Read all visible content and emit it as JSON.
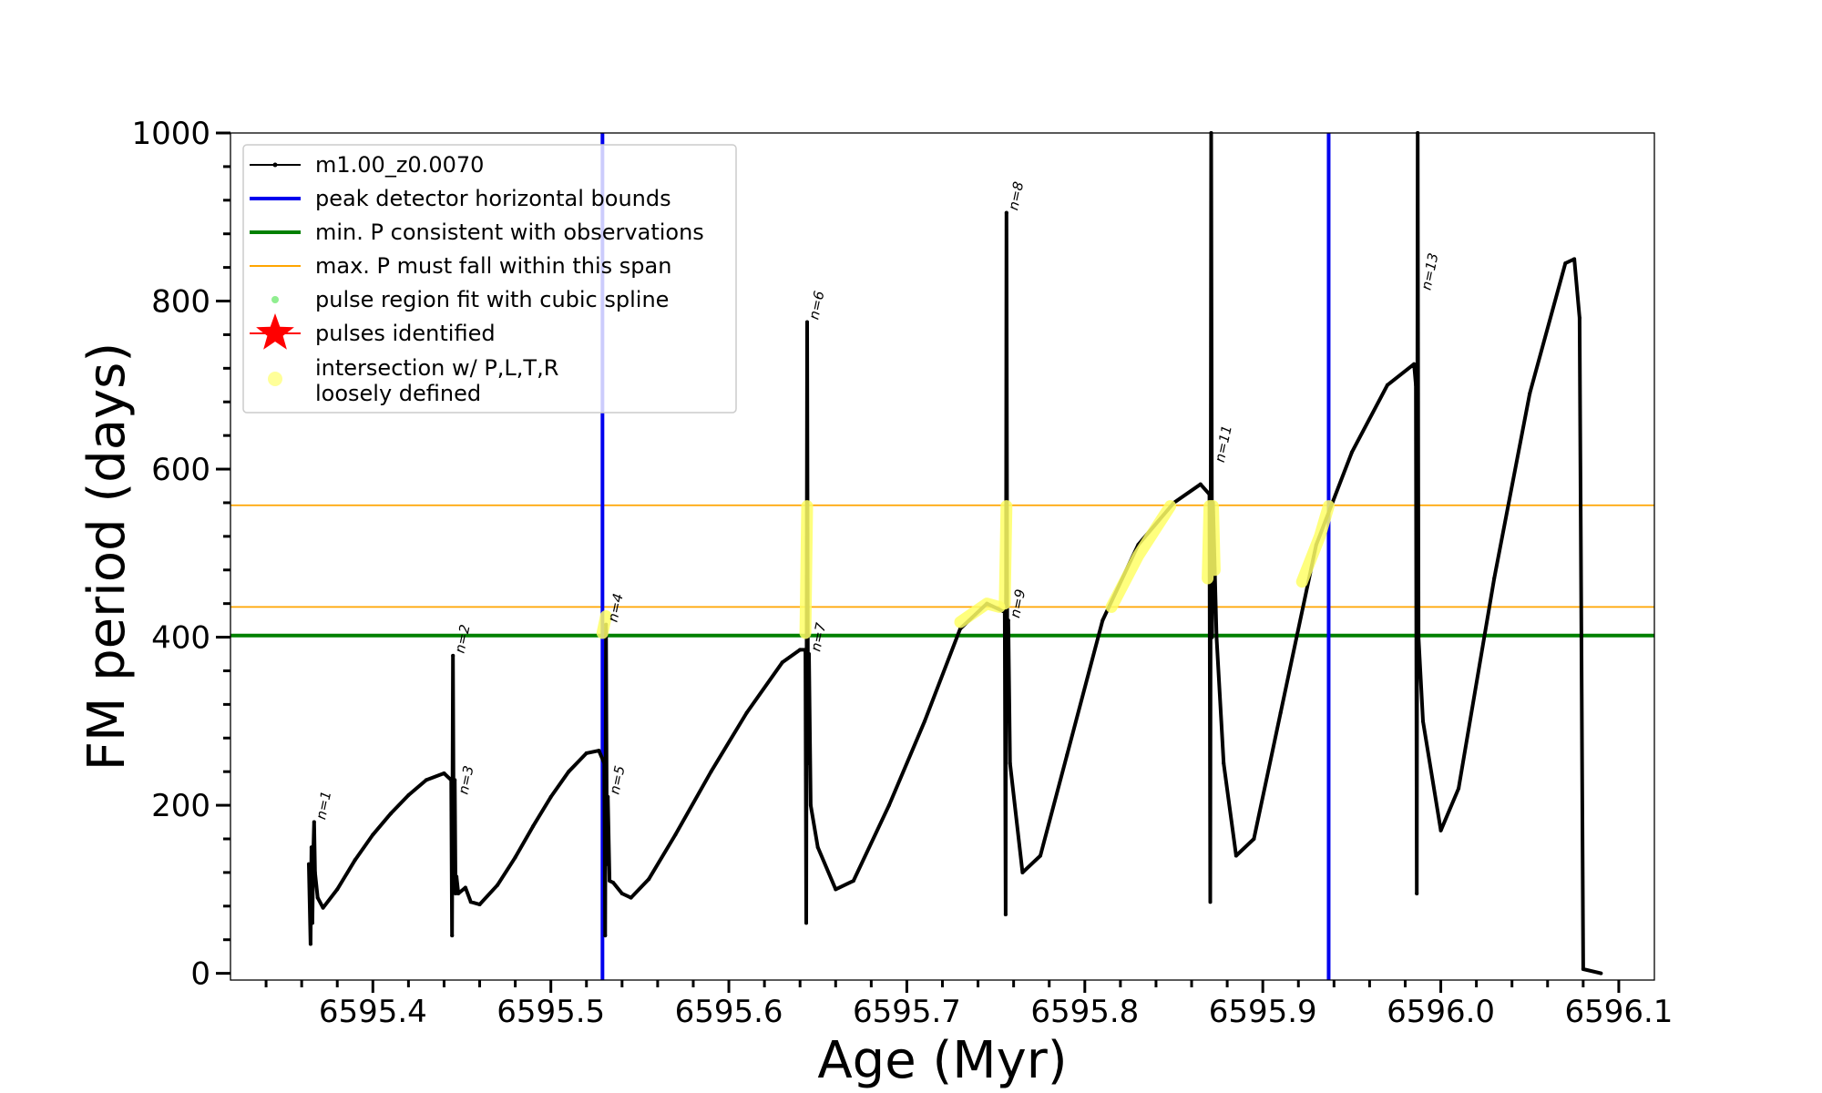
{
  "chart_data": {
    "type": "line",
    "title": "",
    "xlabel": "Age (Myr)",
    "ylabel": "FM period (days)",
    "xlim": [
      6595.32,
      6596.12
    ],
    "ylim": [
      -8,
      1000
    ],
    "x_ticks": [
      "6595.4",
      "6595.5",
      "6595.6",
      "6595.7",
      "6595.8",
      "6595.9",
      "6596.0",
      "6596.1"
    ],
    "x_tick_values": [
      6595.4,
      6595.5,
      6595.6,
      6595.7,
      6595.8,
      6595.9,
      6596.0,
      6596.1
    ],
    "y_ticks": [
      "0",
      "200",
      "400",
      "600",
      "800",
      "1000"
    ],
    "y_tick_values": [
      0,
      200,
      400,
      600,
      800,
      1000
    ],
    "legend_position": "top-left",
    "legend": [
      {
        "label": "m1.00_z0.0070",
        "kind": "line-marker",
        "color": "#000000"
      },
      {
        "label": "peak detector horizontal bounds",
        "kind": "line",
        "color": "#0000ee"
      },
      {
        "label": "min. P consistent with observations",
        "kind": "line",
        "color": "#008000"
      },
      {
        "label": "max. P must fall within this span",
        "kind": "thin-line",
        "color": "#ffa500"
      },
      {
        "label": "pulse region fit with cubic spline",
        "kind": "dot",
        "color": "#90ee90"
      },
      {
        "label": "pulses identified",
        "kind": "star",
        "color": "#ff0000"
      },
      {
        "label": "intersection w/ P,L,T,R\nloosely defined",
        "kind": "big-dot",
        "color": "#ffff99"
      }
    ],
    "vlines": [
      {
        "x": 6595.529,
        "color": "#0000ee",
        "label": "peak detector horizontal bounds"
      },
      {
        "x": 6595.937,
        "color": "#0000ee",
        "label": "peak detector horizontal bounds"
      }
    ],
    "hlines": [
      {
        "y": 402,
        "color": "#008000",
        "label": "min. P consistent with observations"
      },
      {
        "y": 436,
        "color": "#ffa500",
        "label": "max. P must fall within this span"
      },
      {
        "y": 557,
        "color": "#ffa500",
        "label": "max. P must fall within this span"
      }
    ],
    "series": [
      {
        "name": "m1.00_z0.0070",
        "color": "#000000",
        "points": [
          [
            6595.364,
            130
          ],
          [
            6595.365,
            35
          ],
          [
            6595.3655,
            150
          ],
          [
            6595.366,
            60
          ],
          [
            6595.3665,
            140
          ],
          [
            6595.367,
            180
          ],
          [
            6595.3675,
            120
          ],
          [
            6595.369,
            90
          ],
          [
            6595.372,
            78
          ],
          [
            6595.38,
            100
          ],
          [
            6595.39,
            135
          ],
          [
            6595.4,
            165
          ],
          [
            6595.41,
            190
          ],
          [
            6595.42,
            212
          ],
          [
            6595.43,
            230
          ],
          [
            6595.44,
            238
          ],
          [
            6595.444,
            230
          ],
          [
            6595.4445,
            45
          ],
          [
            6595.445,
            378
          ],
          [
            6595.4455,
            120
          ],
          [
            6595.446,
            230
          ],
          [
            6595.4465,
            95
          ],
          [
            6595.447,
            115
          ],
          [
            6595.448,
            95
          ],
          [
            6595.452,
            102
          ],
          [
            6595.455,
            85
          ],
          [
            6595.46,
            82
          ],
          [
            6595.47,
            105
          ],
          [
            6595.48,
            138
          ],
          [
            6595.49,
            175
          ],
          [
            6595.5,
            210
          ],
          [
            6595.51,
            240
          ],
          [
            6595.52,
            262
          ],
          [
            6595.527,
            265
          ],
          [
            6595.53,
            250
          ],
          [
            6595.5305,
            45
          ],
          [
            6595.531,
            415
          ],
          [
            6595.5315,
            130
          ],
          [
            6595.532,
            210
          ],
          [
            6595.533,
            110
          ],
          [
            6595.535,
            108
          ],
          [
            6595.54,
            95
          ],
          [
            6595.545,
            90
          ],
          [
            6595.555,
            112
          ],
          [
            6595.57,
            165
          ],
          [
            6595.59,
            240
          ],
          [
            6595.61,
            310
          ],
          [
            6595.63,
            370
          ],
          [
            6595.64,
            385
          ],
          [
            6595.643,
            385
          ],
          [
            6595.6435,
            60
          ],
          [
            6595.644,
            775
          ],
          [
            6595.6445,
            250
          ],
          [
            6595.645,
            380
          ],
          [
            6595.646,
            200
          ],
          [
            6595.65,
            150
          ],
          [
            6595.66,
            100
          ],
          [
            6595.67,
            110
          ],
          [
            6595.69,
            200
          ],
          [
            6595.71,
            300
          ],
          [
            6595.73,
            410
          ],
          [
            6595.745,
            440
          ],
          [
            6595.755,
            430
          ],
          [
            6595.7555,
            70
          ],
          [
            6595.756,
            905
          ],
          [
            6595.7565,
            300
          ],
          [
            6595.757,
            420
          ],
          [
            6595.758,
            250
          ],
          [
            6595.765,
            120
          ],
          [
            6595.775,
            140
          ],
          [
            6595.79,
            260
          ],
          [
            6595.81,
            420
          ],
          [
            6595.83,
            510
          ],
          [
            6595.85,
            560
          ],
          [
            6595.865,
            582
          ],
          [
            6595.87,
            570
          ],
          [
            6595.8705,
            85
          ],
          [
            6595.871,
            1000
          ],
          [
            6595.8715,
            400
          ],
          [
            6595.872,
            560
          ],
          [
            6595.874,
            400
          ],
          [
            6595.878,
            250
          ],
          [
            6595.885,
            140
          ],
          [
            6595.895,
            160
          ],
          [
            6595.91,
            310
          ],
          [
            6595.93,
            510
          ],
          [
            6595.95,
            620
          ],
          [
            6595.97,
            700
          ],
          [
            6595.985,
            725
          ],
          [
            6595.986,
            700
          ],
          [
            6595.9865,
            95
          ],
          [
            6595.987,
            1000
          ],
          [
            6595.9875,
            400
          ],
          [
            6595.99,
            300
          ],
          [
            6596.0,
            170
          ],
          [
            6596.01,
            220
          ],
          [
            6596.03,
            470
          ],
          [
            6596.05,
            690
          ],
          [
            6596.07,
            845
          ],
          [
            6596.075,
            850
          ],
          [
            6596.078,
            780
          ],
          [
            6596.079,
            400
          ],
          [
            6596.08,
            5
          ],
          [
            6596.09,
            0
          ]
        ]
      }
    ],
    "pulse_labels": [
      {
        "label": "n=1",
        "x": 6595.367,
        "y": 180
      },
      {
        "label": "n=2",
        "x": 6595.445,
        "y": 378
      },
      {
        "label": "n=3",
        "x": 6595.447,
        "y": 210
      },
      {
        "label": "n=4",
        "x": 6595.531,
        "y": 415
      },
      {
        "label": "n=5",
        "x": 6595.532,
        "y": 210
      },
      {
        "label": "n=6",
        "x": 6595.644,
        "y": 775
      },
      {
        "label": "n=7",
        "x": 6595.645,
        "y": 380
      },
      {
        "label": "n=8",
        "x": 6595.756,
        "y": 905
      },
      {
        "label": "n=9",
        "x": 6595.757,
        "y": 420
      },
      {
        "label": "n=11",
        "x": 6595.872,
        "y": 605
      },
      {
        "label": "n=13",
        "x": 6595.988,
        "y": 810
      }
    ],
    "highlight_segments": [
      {
        "color": "#ffff66",
        "points": [
          [
            6595.529,
            405
          ],
          [
            6595.531,
            425
          ]
        ]
      },
      {
        "color": "#ffff66",
        "points": [
          [
            6595.643,
            405
          ],
          [
            6595.644,
            556
          ]
        ]
      },
      {
        "color": "#ffff66",
        "points": [
          [
            6595.73,
            418
          ],
          [
            6595.745,
            440
          ],
          [
            6595.752,
            436
          ]
        ]
      },
      {
        "color": "#ffff66",
        "points": [
          [
            6595.755,
            440
          ],
          [
            6595.756,
            556
          ]
        ]
      },
      {
        "color": "#ffff66",
        "points": [
          [
            6595.815,
            436
          ],
          [
            6595.83,
            497
          ],
          [
            6595.848,
            556
          ]
        ]
      },
      {
        "color": "#ffff66",
        "points": [
          [
            6595.869,
            470
          ],
          [
            6595.87,
            556
          ],
          [
            6595.872,
            556
          ],
          [
            6595.873,
            480
          ]
        ]
      },
      {
        "color": "#ffff66",
        "points": [
          [
            6595.922,
            466
          ],
          [
            6595.932,
            520
          ],
          [
            6595.937,
            556
          ]
        ]
      }
    ]
  }
}
